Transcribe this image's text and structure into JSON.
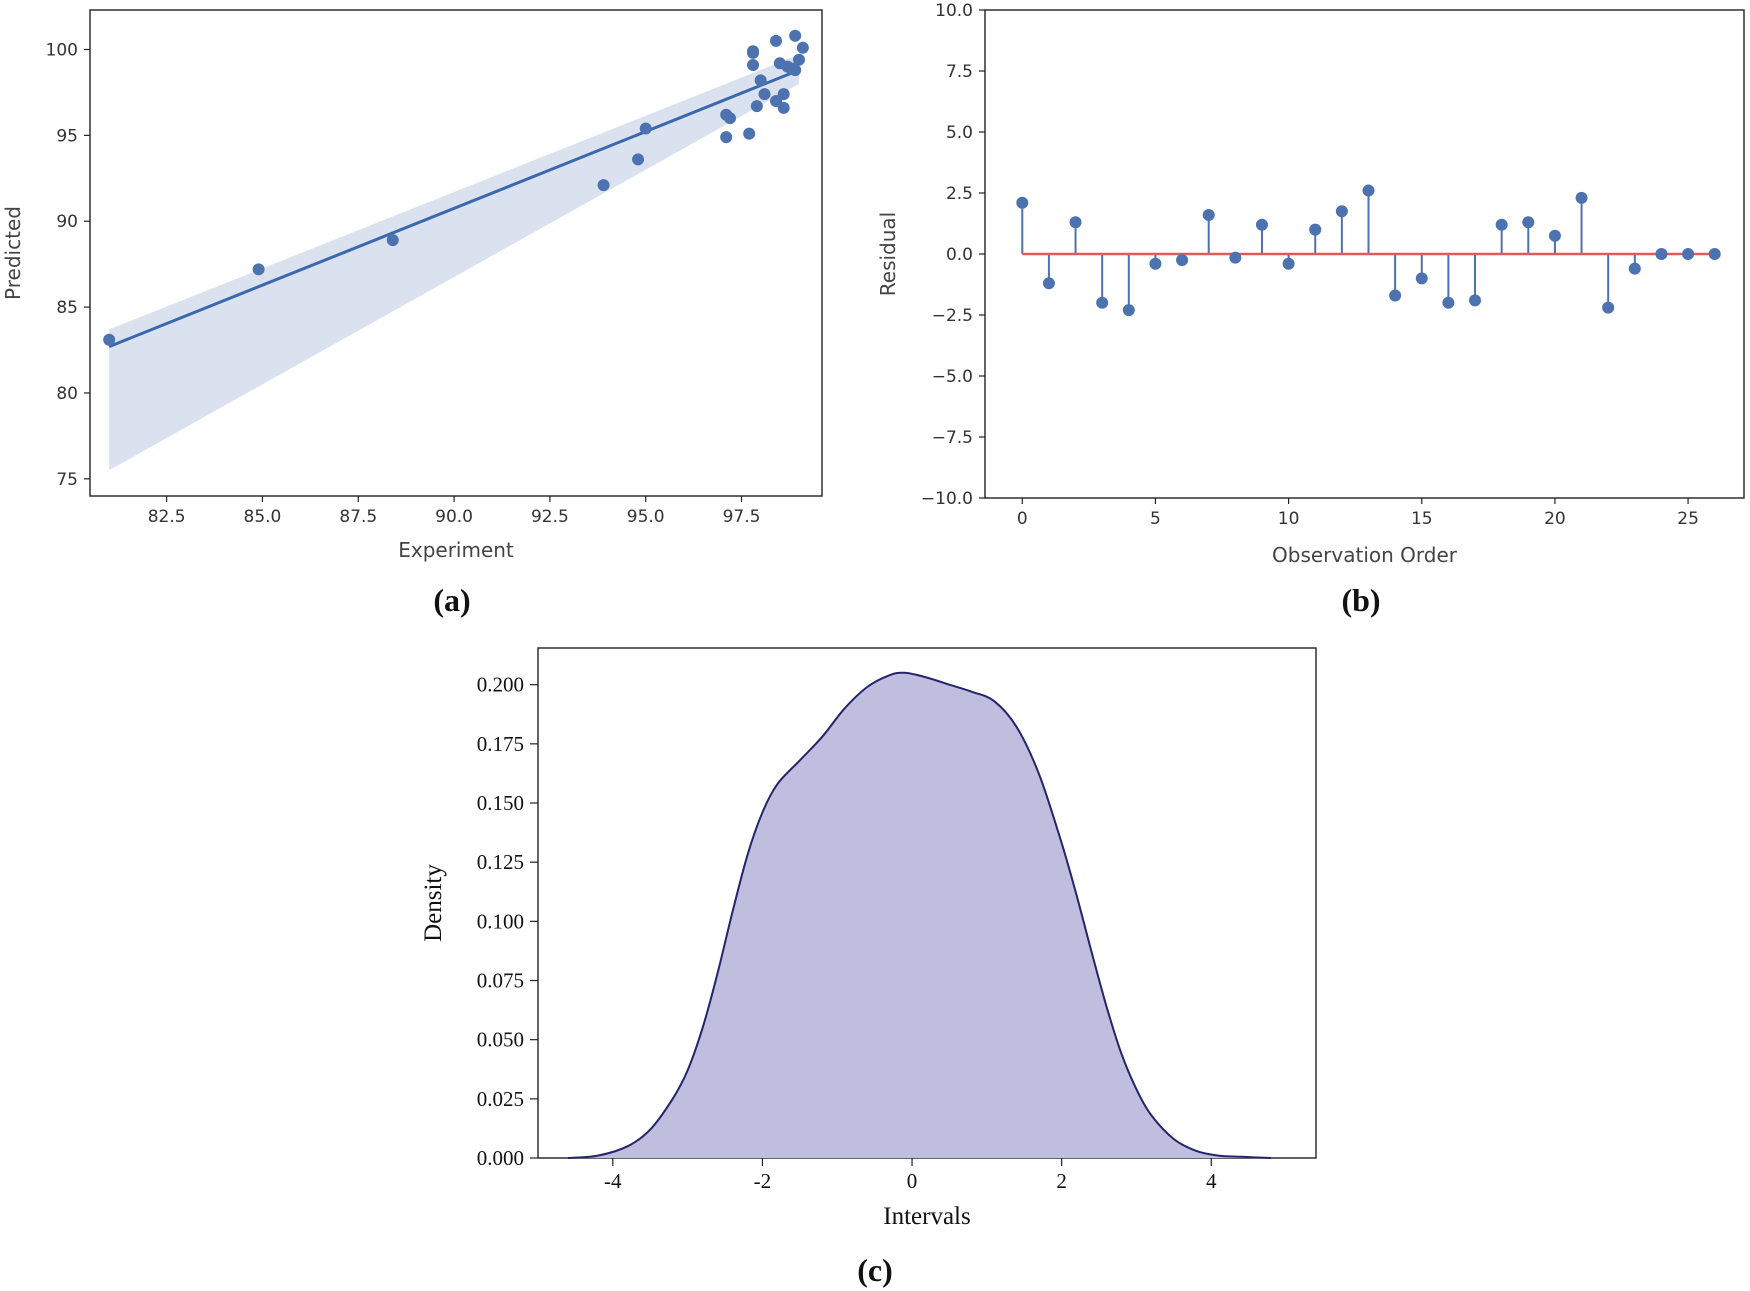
{
  "captions": {
    "a": "(a)",
    "b": "(b)",
    "c": "(c)"
  },
  "colors": {
    "point": "#4c72b0",
    "line": "#3a67ad",
    "band": "#dbe2ef",
    "baseline": "#e05a5a",
    "kde_fill": "#bfbedf",
    "kde_line": "#24246b"
  },
  "chart_data": [
    {
      "panel": "a",
      "type": "scatter",
      "xlabel": "Experiment",
      "ylabel": "Predicted",
      "xlim": [
        80.5,
        99.6
      ],
      "ylim": [
        74.0,
        102.3
      ],
      "xticks": [
        82.5,
        85.0,
        87.5,
        90.0,
        92.5,
        95.0,
        97.5
      ],
      "xtick_labels": [
        "82.5",
        "85.0",
        "87.5",
        "90.0",
        "92.5",
        "95.0",
        "97.5"
      ],
      "yticks": [
        75,
        80,
        85,
        90,
        95,
        100
      ],
      "ytick_labels": [
        "75",
        "80",
        "85",
        "90",
        "95",
        "100"
      ],
      "points": [
        [
          81.0,
          83.1
        ],
        [
          84.9,
          87.2
        ],
        [
          88.4,
          88.9
        ],
        [
          93.9,
          92.1
        ],
        [
          94.8,
          93.6
        ],
        [
          95.0,
          95.4
        ],
        [
          97.1,
          96.2
        ],
        [
          97.1,
          94.9
        ],
        [
          97.2,
          96.0
        ],
        [
          97.7,
          95.1
        ],
        [
          97.8,
          99.9
        ],
        [
          97.8,
          99.8
        ],
        [
          97.8,
          99.1
        ],
        [
          97.9,
          96.7
        ],
        [
          98.0,
          98.2
        ],
        [
          98.1,
          97.4
        ],
        [
          98.4,
          97.0
        ],
        [
          98.4,
          100.5
        ],
        [
          98.5,
          99.2
        ],
        [
          98.6,
          96.6
        ],
        [
          98.6,
          97.4
        ],
        [
          98.7,
          99.0
        ],
        [
          98.8,
          98.9
        ],
        [
          98.9,
          100.8
        ],
        [
          99.0,
          99.4
        ],
        [
          99.1,
          100.1
        ],
        [
          98.9,
          98.8
        ]
      ],
      "fit_line": [
        [
          81.0,
          82.7
        ],
        [
          99.0,
          98.8
        ]
      ],
      "band_upper": [
        [
          81.0,
          83.7
        ],
        [
          99.0,
          99.7
        ]
      ],
      "band_lower": [
        [
          81.0,
          75.5
        ],
        [
          99.0,
          98.0
        ]
      ]
    },
    {
      "panel": "b",
      "type": "stem",
      "xlabel": "Observation Order",
      "ylabel": "Residual",
      "xlim": [
        -1.4,
        27.1
      ],
      "ylim": [
        -10.0,
        10.0
      ],
      "xticks": [
        0,
        5,
        10,
        15,
        20,
        25
      ],
      "xtick_labels": [
        "0",
        "5",
        "10",
        "15",
        "20",
        "25"
      ],
      "yticks": [
        -10.0,
        -7.5,
        -5.0,
        -2.5,
        0.0,
        2.5,
        5.0,
        7.5,
        10.0
      ],
      "ytick_labels": [
        "−10.0",
        "−7.5",
        "−5.0",
        "−2.5",
        "0.0",
        "2.5",
        "5.0",
        "7.5",
        "10.0"
      ],
      "x": [
        0,
        1,
        2,
        3,
        4,
        5,
        6,
        7,
        8,
        9,
        10,
        11,
        12,
        13,
        14,
        15,
        16,
        17,
        18,
        19,
        20,
        21,
        22,
        23,
        24,
        25,
        26
      ],
      "values": [
        2.1,
        -1.2,
        1.3,
        -2.0,
        -2.3,
        -0.4,
        -0.25,
        1.6,
        -0.15,
        1.2,
        -0.4,
        1.0,
        1.75,
        2.6,
        -1.7,
        -1.0,
        -2.0,
        -1.9,
        1.2,
        1.3,
        0.75,
        2.3,
        -2.2,
        -0.6,
        0.0,
        0.0,
        0.0
      ]
    },
    {
      "panel": "c",
      "type": "area",
      "xlabel": "Intervals",
      "ylabel": "Density",
      "xlim": [
        -5.0,
        5.4
      ],
      "ylim": [
        0.0,
        0.2155
      ],
      "xticks": [
        -4,
        -2,
        0,
        2,
        4
      ],
      "xtick_labels": [
        "-4",
        "-2",
        "0",
        "2",
        "4"
      ],
      "yticks": [
        0.0,
        0.025,
        0.05,
        0.075,
        0.1,
        0.125,
        0.15,
        0.175,
        0.2
      ],
      "ytick_labels": [
        "0.000",
        "0.025",
        "0.050",
        "0.075",
        "0.100",
        "0.125",
        "0.150",
        "0.175",
        "0.200"
      ],
      "x": [
        -4.6,
        -4.2,
        -3.8,
        -3.5,
        -3.2,
        -3.0,
        -2.8,
        -2.6,
        -2.4,
        -2.2,
        -2.0,
        -1.8,
        -1.5,
        -1.2,
        -0.9,
        -0.6,
        -0.3,
        -0.1,
        0.2,
        0.5,
        0.8,
        1.1,
        1.4,
        1.7,
        2.0,
        2.2,
        2.4,
        2.6,
        2.8,
        3.0,
        3.2,
        3.5,
        3.8,
        4.1,
        4.4,
        4.8
      ],
      "y": [
        0.0,
        0.001,
        0.005,
        0.012,
        0.025,
        0.037,
        0.055,
        0.078,
        0.104,
        0.128,
        0.146,
        0.158,
        0.168,
        0.178,
        0.19,
        0.199,
        0.204,
        0.205,
        0.203,
        0.2,
        0.197,
        0.193,
        0.182,
        0.162,
        0.133,
        0.111,
        0.087,
        0.064,
        0.044,
        0.029,
        0.018,
        0.008,
        0.003,
        0.001,
        0.0005,
        0.0
      ]
    }
  ]
}
